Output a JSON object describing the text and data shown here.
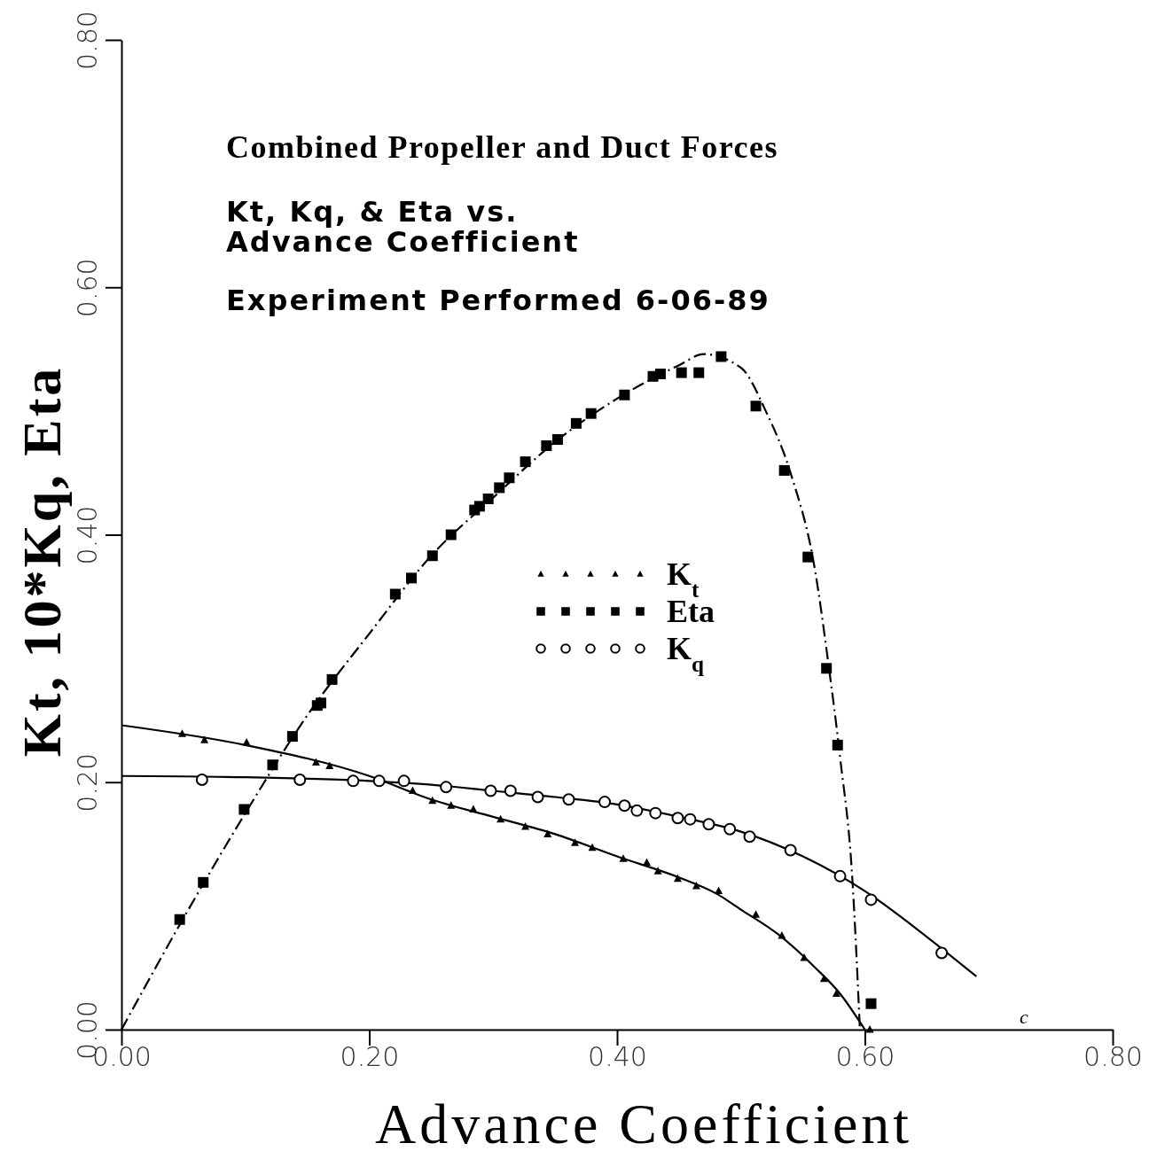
{
  "chart_data": {
    "type": "scatter",
    "title": "Combined Propeller and Duct Forces",
    "subtitle": "Kt, Kq, & Eta vs.\nAdvance Coefficient",
    "xlabel": "Advance Coefficient",
    "ylabel": "Kt, 10*Kq, Eta",
    "annotations": [
      "Experiment Performed 6-06-89",
      "c"
    ],
    "xlim": [
      0,
      0.8
    ],
    "ylim": [
      0,
      0.8
    ],
    "xticks": [
      {
        "value": 0,
        "label": "0.00"
      },
      {
        "value": 0.2,
        "label": "0.20"
      },
      {
        "value": 0.4,
        "label": "0.40"
      },
      {
        "value": 0.6,
        "label": "0.60"
      },
      {
        "value": 0.8,
        "label": "0.80"
      }
    ],
    "yticks": [
      {
        "value": 0,
        "label": "0.00"
      },
      {
        "value": 0.2,
        "label": "0.20"
      },
      {
        "value": 0.4,
        "label": "0.40"
      },
      {
        "value": 0.6,
        "label": "0.60"
      },
      {
        "value": 0.8,
        "label": "0.80"
      }
    ],
    "grid": false,
    "legend": "center",
    "series": [
      {
        "type": "line",
        "color": "#000000",
        "line_style": "dashed",
        "x": [
          0,
          0.05,
          0.1,
          0.15,
          0.2,
          0.25,
          0.3,
          0.35,
          0.4,
          0.45,
          0.47,
          0.5,
          0.52,
          0.54,
          0.56,
          0.57,
          0.58,
          0.59,
          0.596
        ],
        "values": [
          0,
          0.09,
          0.175,
          0.254,
          0.32,
          0.383,
          0.43,
          0.475,
          0.51,
          0.537,
          0.546,
          0.535,
          0.5,
          0.45,
          0.37,
          0.3,
          0.22,
          0.12,
          0
        ]
      },
      {
        "type": "line",
        "color": "#000000",
        "line_style": "solid",
        "x": [
          0,
          0.1,
          0.2,
          0.25,
          0.3,
          0.35,
          0.4,
          0.45,
          0.48,
          0.5,
          0.53,
          0.56,
          0.58,
          0.6
        ],
        "values": [
          0.246,
          0.23,
          0.205,
          0.186,
          0.172,
          0.158,
          0.14,
          0.123,
          0.11,
          0.097,
          0.077,
          0.05,
          0.029,
          0
        ]
      },
      {
        "type": "line",
        "color": "#000000",
        "line_style": "solid",
        "x": [
          0,
          0.1,
          0.2,
          0.25,
          0.3,
          0.35,
          0.4,
          0.45,
          0.5,
          0.55,
          0.6,
          0.65,
          0.69
        ],
        "values": [
          0.205,
          0.204,
          0.201,
          0.198,
          0.193,
          0.188,
          0.182,
          0.172,
          0.16,
          0.14,
          0.112,
          0.075,
          0.043
        ]
      },
      {
        "name": "K$_{t}$",
        "marker": "triangle",
        "color": "#000000",
        "x": [
          0.049,
          0.067,
          0.101,
          0.157,
          0.168,
          0.235,
          0.251,
          0.266,
          0.284,
          0.306,
          0.326,
          0.344,
          0.366,
          0.38,
          0.405,
          0.424,
          0.433,
          0.449,
          0.464,
          0.482,
          0.512,
          0.533,
          0.551,
          0.567,
          0.577,
          0.604
        ],
        "values": [
          0.239,
          0.234,
          0.232,
          0.216,
          0.213,
          0.193,
          0.185,
          0.181,
          0.178,
          0.17,
          0.164,
          0.158,
          0.151,
          0.147,
          0.138,
          0.135,
          0.128,
          0.122,
          0.116,
          0.112,
          0.093,
          0.076,
          0.058,
          0.041,
          0.029,
          0
        ]
      },
      {
        "name": "Eta",
        "marker": "square",
        "color": "#000000",
        "x": [
          0.047,
          0.066,
          0.099,
          0.122,
          0.138,
          0.158,
          0.161,
          0.17,
          0.221,
          0.234,
          0.251,
          0.266,
          0.285,
          0.289,
          0.296,
          0.305,
          0.313,
          0.326,
          0.343,
          0.352,
          0.367,
          0.379,
          0.406,
          0.429,
          0.435,
          0.452,
          0.466,
          0.484,
          0.512,
          0.535,
          0.554,
          0.569,
          0.578,
          0.605
        ],
        "values": [
          0.089,
          0.119,
          0.178,
          0.214,
          0.237,
          0.262,
          0.264,
          0.283,
          0.352,
          0.365,
          0.383,
          0.4,
          0.42,
          0.423,
          0.429,
          0.438,
          0.446,
          0.459,
          0.472,
          0.477,
          0.49,
          0.498,
          0.513,
          0.528,
          0.53,
          0.531,
          0.531,
          0.544,
          0.504,
          0.452,
          0.382,
          0.292,
          0.23,
          0.021
        ]
      },
      {
        "name": "K$_{q}$",
        "marker": "circle",
        "color": "#000000",
        "x": [
          0.065,
          0.144,
          0.187,
          0.208,
          0.228,
          0.262,
          0.298,
          0.314,
          0.336,
          0.361,
          0.39,
          0.406,
          0.416,
          0.431,
          0.449,
          0.459,
          0.474,
          0.491,
          0.507,
          0.54,
          0.58,
          0.605,
          0.662
        ],
        "values": [
          0.202,
          0.202,
          0.201,
          0.201,
          0.201,
          0.196,
          0.193,
          0.193,
          0.188,
          0.186,
          0.184,
          0.181,
          0.177,
          0.175,
          0.171,
          0.17,
          0.166,
          0.162,
          0.156,
          0.145,
          0.124,
          0.105,
          0.062
        ]
      }
    ]
  }
}
